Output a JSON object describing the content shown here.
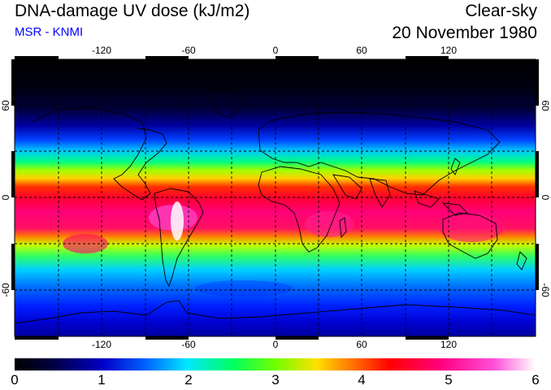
{
  "header": {
    "title": "DNA-damage UV dose (kJ/m2)",
    "source": "MSR - KNMI",
    "condition": "Clear-sky",
    "date": "20 November 1980"
  },
  "map": {
    "longitude_ticks": [
      "-120",
      "-60",
      "0",
      "60",
      "120"
    ],
    "latitude_ticks": [
      "60",
      "0",
      "-60"
    ],
    "gridlines": true,
    "projection": "equirectangular"
  },
  "colorbar": {
    "min": 0,
    "max": 6,
    "tick_labels": [
      "0",
      "1",
      "2",
      "3",
      "4",
      "5",
      "6"
    ],
    "colors": [
      "#000000",
      "#0000b4",
      "#0064ff",
      "#00e6ff",
      "#00ff50",
      "#dcff00",
      "#ffaa00",
      "#ff0000",
      "#ff0080",
      "#ff40d0",
      "#ffffff"
    ]
  }
}
